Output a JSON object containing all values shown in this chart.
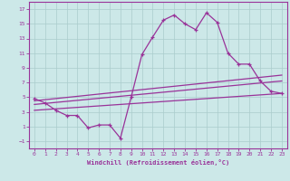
{
  "xlabel": "Windchill (Refroidissement éolien,°C)",
  "background_color": "#cce8e8",
  "line_color": "#993399",
  "xlim": [
    -0.5,
    23.5
  ],
  "ylim": [
    -2,
    18
  ],
  "xticks": [
    0,
    1,
    2,
    3,
    4,
    5,
    6,
    7,
    8,
    9,
    10,
    11,
    12,
    13,
    14,
    15,
    16,
    17,
    18,
    19,
    20,
    21,
    22,
    23
  ],
  "yticks": [
    -1,
    1,
    3,
    5,
    7,
    9,
    11,
    13,
    15,
    17
  ],
  "line1_x": [
    0,
    1,
    2,
    3,
    4,
    5,
    6,
    7,
    8,
    9,
    10,
    11,
    12,
    13,
    14,
    15,
    16,
    17,
    18,
    19,
    20,
    21,
    22,
    23
  ],
  "line1_y": [
    4.8,
    4.2,
    3.2,
    2.5,
    2.5,
    0.8,
    1.2,
    1.2,
    -0.6,
    5.0,
    10.8,
    13.2,
    15.5,
    16.2,
    15.0,
    14.2,
    16.5,
    15.2,
    11.0,
    9.5,
    9.5,
    7.2,
    5.8,
    5.5
  ],
  "line3_x": [
    0,
    23
  ],
  "line3_y": [
    4.5,
    8.0
  ],
  "line4_x": [
    0,
    23
  ],
  "line4_y": [
    4.0,
    7.2
  ],
  "line5_x": [
    0,
    23
  ],
  "line5_y": [
    3.2,
    5.5
  ]
}
